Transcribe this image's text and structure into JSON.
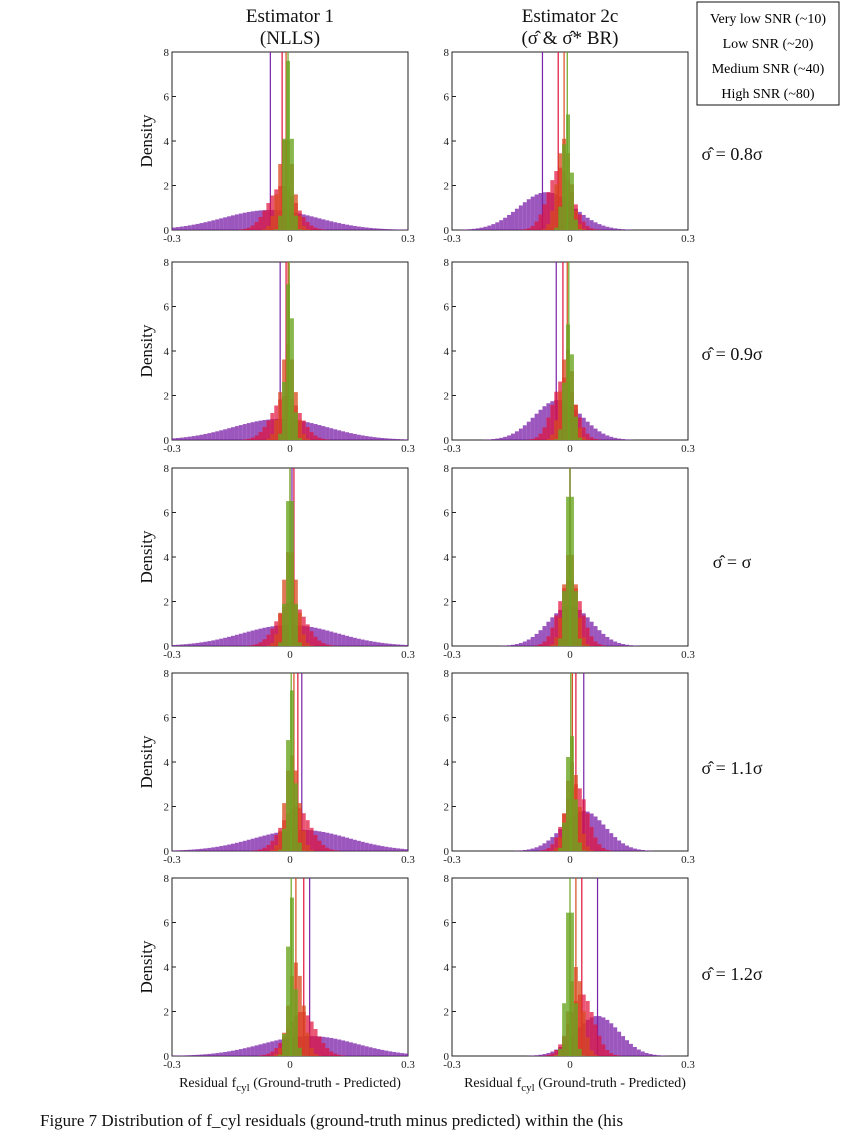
{
  "figure": {
    "col_titles": [
      {
        "line1": "Estimator 1",
        "line2": "(NLLS)"
      },
      {
        "line1": "Estimator 2c",
        "line2": "(σ̂ & σ̂* BR)"
      }
    ],
    "row_labels": [
      "σ̂ = 0.8σ",
      "σ̂ = 0.9σ",
      "σ̂ = σ",
      "σ̂ = 1.1σ",
      "σ̂ = 1.2σ"
    ],
    "ylabel": "Density",
    "xlabel": "Residual f",
    "xlabel_sub": "cyl",
    "xlabel_tail": " (Ground-truth - Predicted)",
    "caption": "Figure 7 Distribution of f_cyl residuals (ground-truth minus predicted) within the (his"
  },
  "colors": {
    "very_low": "#7a1fa8",
    "low": "#e0103a",
    "medium": "#d84a1e",
    "high": "#6aa520"
  },
  "legend": [
    {
      "label": "Very low SNR (~10)",
      "color": "#7a1fa8"
    },
    {
      "label": "Low SNR (~20)",
      "color": "#e0103a"
    },
    {
      "label": "Medium SNR (~40)",
      "color": "#d84a1e"
    },
    {
      "label": "High SNR (~80)",
      "color": "#6aa520"
    }
  ],
  "chart_data": {
    "type": "histogram",
    "xlim": [
      -0.3,
      0.3
    ],
    "ylim": [
      0,
      8
    ],
    "xticks": [
      "-0.3",
      "0",
      "0.3"
    ],
    "yticks": [
      "0",
      "2",
      "4",
      "6",
      "8"
    ],
    "series_names": [
      "Very low SNR (~10)",
      "Low SNR (~20)",
      "Medium SNR (~40)",
      "High SNR (~80)"
    ],
    "panels": [
      {
        "row": "σ̂ = 0.8σ",
        "col": "Estimator 1",
        "series": [
          {
            "name": "Very low SNR (~10)",
            "mean": -0.05,
            "sd": 0.12,
            "peak": 0.9,
            "median_line": -0.05
          },
          {
            "name": "Low SNR (~20)",
            "mean": -0.02,
            "sd": 0.035,
            "peak": 2.0,
            "median_line": -0.02
          },
          {
            "name": "Medium SNR (~40)",
            "mean": -0.01,
            "sd": 0.018,
            "peak": 4.2,
            "median_line": -0.01
          },
          {
            "name": "High SNR (~80)",
            "mean": -0.005,
            "sd": 0.009,
            "peak": 7.6,
            "median_line": -0.005
          }
        ]
      },
      {
        "row": "σ̂ = 0.8σ",
        "col": "Estimator 2c",
        "series": [
          {
            "name": "Very low SNR (~10)",
            "mean": -0.06,
            "sd": 0.07,
            "peak": 1.7,
            "median_line": -0.07
          },
          {
            "name": "Low SNR (~20)",
            "mean": -0.025,
            "sd": 0.03,
            "peak": 2.8,
            "median_line": -0.03
          },
          {
            "name": "Medium SNR (~40)",
            "mean": -0.015,
            "sd": 0.017,
            "peak": 4.1,
            "median_line": -0.015
          },
          {
            "name": "High SNR (~80)",
            "mean": -0.007,
            "sd": 0.01,
            "peak": 5.3,
            "median_line": -0.007
          }
        ]
      },
      {
        "row": "σ̂ = 0.9σ",
        "col": "Estimator 1",
        "series": [
          {
            "name": "Very low SNR (~10)",
            "mean": -0.025,
            "sd": 0.12,
            "peak": 0.95,
            "median_line": -0.025
          },
          {
            "name": "Low SNR (~20)",
            "mean": -0.01,
            "sd": 0.035,
            "peak": 2.0,
            "median_line": -0.01
          },
          {
            "name": "Medium SNR (~40)",
            "mean": -0.005,
            "sd": 0.017,
            "peak": 4.3,
            "median_line": -0.005
          },
          {
            "name": "High SNR (~80)",
            "mean": -0.002,
            "sd": 0.009,
            "peak": 7.4,
            "median_line": -0.002
          }
        ]
      },
      {
        "row": "σ̂ = 0.9σ",
        "col": "Estimator 2c",
        "series": [
          {
            "name": "Very low SNR (~10)",
            "mean": -0.03,
            "sd": 0.06,
            "peak": 1.8,
            "median_line": -0.035
          },
          {
            "name": "Low SNR (~20)",
            "mean": -0.015,
            "sd": 0.028,
            "peak": 2.8,
            "median_line": -0.018
          },
          {
            "name": "Medium SNR (~40)",
            "mean": -0.007,
            "sd": 0.016,
            "peak": 4.1,
            "median_line": -0.007
          },
          {
            "name": "High SNR (~80)",
            "mean": -0.003,
            "sd": 0.01,
            "peak": 5.3,
            "median_line": -0.003
          }
        ]
      },
      {
        "row": "σ̂ = σ",
        "col": "Estimator 1",
        "series": [
          {
            "name": "Very low SNR (~10)",
            "mean": 0.0,
            "sd": 0.12,
            "peak": 0.95,
            "median_line": 0.005
          },
          {
            "name": "Low SNR (~20)",
            "mean": 0.003,
            "sd": 0.035,
            "peak": 2.0,
            "median_line": 0.01
          },
          {
            "name": "Medium SNR (~40)",
            "mean": 0.0,
            "sd": 0.017,
            "peak": 4.4,
            "median_line": 0.0
          },
          {
            "name": "High SNR (~80)",
            "mean": 0.0,
            "sd": 0.009,
            "peak": 7.6,
            "median_line": 0.0
          }
        ]
      },
      {
        "row": "σ̂ = σ",
        "col": "Estimator 2c",
        "series": [
          {
            "name": "Very low SNR (~10)",
            "mean": 0.0,
            "sd": 0.055,
            "peak": 1.8,
            "median_line": 0.0
          },
          {
            "name": "Low SNR (~20)",
            "mean": 0.0,
            "sd": 0.028,
            "peak": 3.0,
            "median_line": 0.0
          },
          {
            "name": "Medium SNR (~40)",
            "mean": 0.0,
            "sd": 0.016,
            "peak": 4.3,
            "median_line": 0.0
          },
          {
            "name": "High SNR (~80)",
            "mean": 0.0,
            "sd": 0.01,
            "peak": 7.6,
            "median_line": 0.0
          }
        ]
      },
      {
        "row": "σ̂ = 1.1σ",
        "col": "Estimator 1",
        "series": [
          {
            "name": "Very low SNR (~10)",
            "mean": 0.03,
            "sd": 0.12,
            "peak": 0.95,
            "median_line": 0.03
          },
          {
            "name": "Low SNR (~20)",
            "mean": 0.015,
            "sd": 0.035,
            "peak": 2.0,
            "median_line": 0.02
          },
          {
            "name": "Medium SNR (~40)",
            "mean": 0.005,
            "sd": 0.017,
            "peak": 4.3,
            "median_line": 0.01
          },
          {
            "name": "High SNR (~80)",
            "mean": 0.003,
            "sd": 0.009,
            "peak": 7.4,
            "median_line": 0.003
          }
        ]
      },
      {
        "row": "σ̂ = 1.1σ",
        "col": "Estimator 2c",
        "series": [
          {
            "name": "Very low SNR (~10)",
            "mean": 0.035,
            "sd": 0.055,
            "peak": 1.8,
            "median_line": 0.035
          },
          {
            "name": "Low SNR (~20)",
            "mean": 0.015,
            "sd": 0.028,
            "peak": 3.0,
            "median_line": 0.015
          },
          {
            "name": "Medium SNR (~40)",
            "mean": 0.006,
            "sd": 0.016,
            "peak": 4.0,
            "median_line": 0.006
          },
          {
            "name": "High SNR (~80)",
            "mean": 0.002,
            "sd": 0.01,
            "peak": 5.4,
            "median_line": 0.002
          }
        ]
      },
      {
        "row": "σ̂ = 1.2σ",
        "col": "Estimator 1",
        "series": [
          {
            "name": "Very low SNR (~10)",
            "mean": 0.05,
            "sd": 0.12,
            "peak": 0.9,
            "median_line": 0.05
          },
          {
            "name": "Low SNR (~20)",
            "mean": 0.03,
            "sd": 0.035,
            "peak": 2.0,
            "median_line": 0.035
          },
          {
            "name": "Medium SNR (~40)",
            "mean": 0.015,
            "sd": 0.018,
            "peak": 4.2,
            "median_line": 0.015
          },
          {
            "name": "High SNR (~80)",
            "mean": 0.003,
            "sd": 0.009,
            "peak": 7.3,
            "median_line": 0.003
          }
        ]
      },
      {
        "row": "σ̂ = 1.2σ",
        "col": "Estimator 2c",
        "series": [
          {
            "name": "Very low SNR (~10)",
            "mean": 0.07,
            "sd": 0.055,
            "peak": 1.8,
            "median_line": 0.07
          },
          {
            "name": "Low SNR (~20)",
            "mean": 0.03,
            "sd": 0.03,
            "peak": 2.8,
            "median_line": 0.03
          },
          {
            "name": "Medium SNR (~40)",
            "mean": 0.015,
            "sd": 0.017,
            "peak": 4.0,
            "median_line": 0.015
          },
          {
            "name": "High SNR (~80)",
            "mean": 0.0,
            "sd": 0.01,
            "peak": 7.3,
            "median_line": 0.0
          }
        ]
      }
    ]
  }
}
